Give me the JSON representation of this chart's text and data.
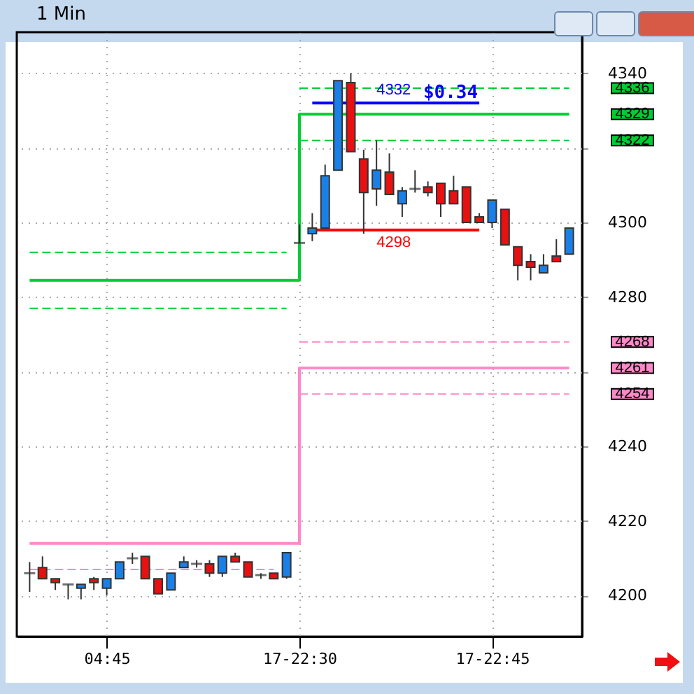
{
  "chart_data": {
    "type": "candlestick",
    "title": "1 Min",
    "categories": [
      null,
      null,
      null,
      null,
      null,
      null,
      "04:45",
      null,
      null,
      null,
      null,
      null,
      null,
      null,
      null,
      null,
      null,
      null,
      null,
      null,
      null,
      "17-22:30",
      null,
      null,
      null,
      null,
      null,
      null,
      null,
      null,
      null,
      null,
      null,
      null,
      null,
      null,
      "17-22:45",
      null,
      null,
      null,
      null,
      null,
      null
    ],
    "ohlc": [
      [
        4206,
        4209,
        4201,
        4206
      ],
      [
        4207.5,
        4210.5,
        4204.5,
        4204.5
      ],
      [
        4204.5,
        4204.5,
        4201.5,
        4203.5
      ],
      [
        4203,
        4203,
        4199,
        4203
      ],
      [
        4202,
        4203,
        4199,
        4203
      ],
      [
        4204.5,
        4205,
        4201.5,
        4203.5
      ],
      [
        4202,
        4204.5,
        4200,
        4204.5
      ],
      [
        4204.5,
        4209,
        4204.5,
        4209
      ],
      [
        4210,
        4211.5,
        4208.5,
        4210
      ],
      [
        4210.5,
        4210.5,
        4204.5,
        4204.5
      ],
      [
        4204.5,
        4204.5,
        4200.5,
        4200.5
      ],
      [
        4201.5,
        4206,
        4201.5,
        4206
      ],
      [
        4207.5,
        4210.5,
        4207.5,
        4209
      ],
      [
        4208.5,
        4209.5,
        4207.5,
        4208.5
      ],
      [
        4208.5,
        4209.5,
        4205,
        4206
      ],
      [
        4206,
        4210.5,
        4205,
        4210.5
      ],
      [
        4210.5,
        4211.5,
        4209,
        4209
      ],
      [
        4209,
        4209,
        4205,
        4205
      ],
      [
        4205.5,
        4206,
        4204.5,
        4205.5
      ],
      [
        4206,
        4206,
        4204.5,
        4204.5
      ],
      [
        4205,
        4211.5,
        4204.5,
        4211.5
      ],
      [
        4294.5,
        4299.5,
        4294.5,
        4294.5
      ],
      [
        4297,
        4302.5,
        4295,
        4298.5
      ],
      [
        4298.5,
        4315.5,
        4298.5,
        4312.5
      ],
      [
        4314,
        4338,
        4314,
        4338
      ],
      [
        4337.5,
        4340,
        4319,
        4319
      ],
      [
        4317,
        4319.5,
        4297,
        4308
      ],
      [
        4309,
        4322,
        4304.5,
        4314
      ],
      [
        4313.5,
        4318.5,
        4307.5,
        4307.5
      ],
      [
        4305,
        4309.5,
        4301.5,
        4308.5
      ],
      [
        4309,
        4314,
        4308,
        4309
      ],
      [
        4309.5,
        4311,
        4307,
        4308
      ],
      [
        4310.5,
        4310.5,
        4301.5,
        4305
      ],
      [
        4308.5,
        4312.5,
        4305,
        4305
      ],
      [
        4309.5,
        4309.5,
        4300,
        4300
      ],
      [
        4301.5,
        4302.5,
        4300,
        4300
      ],
      [
        4300,
        4306,
        4298.5,
        4306
      ],
      [
        4303.5,
        4303.5,
        4294,
        4294
      ],
      [
        4293.5,
        4293.5,
        4284.5,
        4288.5
      ],
      [
        4289.5,
        4291.5,
        4284.5,
        4288
      ],
      [
        4286.5,
        4291.5,
        4286.5,
        4288.5
      ],
      [
        4291,
        4295.5,
        4289.5,
        4289.5
      ],
      [
        4291.5,
        4298.5,
        4291.5,
        4298.5
      ]
    ],
    "colors": [
      "#333333",
      "#e81010",
      "#e81010",
      "#333333",
      "#1a80e8",
      "#e81010",
      "#1a80e8",
      "#1a80e8",
      "#333333",
      "#e81010",
      "#e81010",
      "#1a80e8",
      "#1a80e8",
      "#333333",
      "#e81010",
      "#1a80e8",
      "#e81010",
      "#e81010",
      "#333333",
      "#e81010",
      "#1a80e8",
      "#333333",
      "#1a80e8",
      "#1a80e8",
      "#1a80e8",
      "#e81010",
      "#e81010",
      "#1a80e8",
      "#e81010",
      "#1a80e8",
      "#333333",
      "#e81010",
      "#e81010",
      "#e81010",
      "#e81010",
      "#e81010",
      "#1a80e8",
      "#e81010",
      "#e81010",
      "#e81010",
      "#1a80e8",
      "#e81010",
      "#1a80e8"
    ],
    "series": [
      {
        "type": "line",
        "color": "#00cc33",
        "line_style": "dashed",
        "values": [
          4292,
          4292,
          4292,
          4292,
          4292,
          4292,
          4292,
          4292,
          4292,
          4292,
          4292,
          4292,
          4292,
          4292,
          4292,
          4292,
          4292,
          4292,
          4292,
          4292,
          4292,
          null,
          null,
          null,
          null,
          null,
          null,
          null,
          null,
          null,
          null,
          null,
          null,
          null,
          null,
          null,
          null,
          null,
          null,
          null,
          null,
          null,
          null
        ]
      },
      {
        "type": "line",
        "color": "#00cc33",
        "line_style": "dashed",
        "values": [
          4277,
          4277,
          4277,
          4277,
          4277,
          4277,
          4277,
          4277,
          4277,
          4277,
          4277,
          4277,
          4277,
          4277,
          4277,
          4277,
          4277,
          4277,
          4277,
          4277,
          4277,
          null,
          null,
          null,
          null,
          null,
          null,
          null,
          null,
          null,
          null,
          null,
          null,
          null,
          null,
          null,
          null,
          null,
          null,
          null,
          null,
          null,
          null
        ]
      },
      {
        "type": "line",
        "color": "#ff88c8",
        "line_style": "dashed",
        "values": [
          4207,
          4207,
          4207,
          4207,
          4207,
          4207,
          4207,
          4207,
          4207,
          4207,
          4207,
          4207,
          4207,
          4207,
          4207,
          4207,
          4207,
          4207,
          4207,
          4207,
          null,
          null,
          null,
          null,
          null,
          null,
          null,
          null,
          null,
          null,
          null,
          null,
          null,
          null,
          null,
          null,
          null,
          null,
          null,
          null,
          null,
          null,
          null
        ]
      },
      {
        "type": "line",
        "name": "4336",
        "color": "#00cc33",
        "line_style": "dashed",
        "values": [
          null,
          null,
          null,
          null,
          null,
          null,
          null,
          null,
          null,
          null,
          null,
          null,
          null,
          null,
          null,
          null,
          null,
          null,
          null,
          null,
          null,
          4336,
          4336,
          4336,
          4336,
          4336,
          4336,
          4336,
          4336,
          4336,
          4336,
          4336,
          4336,
          4336,
          4336,
          4336,
          4336,
          4336,
          4336,
          4336,
          4336,
          4336,
          4336
        ]
      },
      {
        "type": "step",
        "name": "4329",
        "color": "#00cc33",
        "line_style": "solid",
        "values": [
          4284.5,
          4284.5,
          4284.5,
          4284.5,
          4284.5,
          4284.5,
          4284.5,
          4284.5,
          4284.5,
          4284.5,
          4284.5,
          4284.5,
          4284.5,
          4284.5,
          4284.5,
          4284.5,
          4284.5,
          4284.5,
          4284.5,
          4284.5,
          4284.5,
          4329,
          4329,
          4329,
          4329,
          4329,
          4329,
          4329,
          4329,
          4329,
          4329,
          4329,
          4329,
          4329,
          4329,
          4329,
          4329,
          4329,
          4329,
          4329,
          4329,
          4329,
          4329
        ]
      },
      {
        "type": "line",
        "name": "4322",
        "color": "#00cc33",
        "line_style": "dashed",
        "values": [
          null,
          null,
          null,
          null,
          null,
          null,
          null,
          null,
          null,
          null,
          null,
          null,
          null,
          null,
          null,
          null,
          null,
          null,
          null,
          null,
          null,
          4322,
          4322,
          4322,
          4322,
          4322,
          4322,
          4322,
          4322,
          4322,
          4322,
          4322,
          4322,
          4322,
          4322,
          4322,
          4322,
          4322,
          4322,
          4322,
          4322,
          4322,
          4322
        ]
      },
      {
        "type": "line",
        "name": "4268",
        "color": "#ff88c8",
        "line_style": "dashed",
        "values": [
          null,
          null,
          null,
          null,
          null,
          null,
          null,
          null,
          null,
          null,
          null,
          null,
          null,
          null,
          null,
          null,
          null,
          null,
          null,
          null,
          null,
          4268,
          4268,
          4268,
          4268,
          4268,
          4268,
          4268,
          4268,
          4268,
          4268,
          4268,
          4268,
          4268,
          4268,
          4268,
          4268,
          4268,
          4268,
          4268,
          4268,
          4268,
          4268
        ]
      },
      {
        "type": "step",
        "name": "4261",
        "color": "#ff88c8",
        "line_style": "solid",
        "values": [
          4214,
          4214,
          4214,
          4214,
          4214,
          4214,
          4214,
          4214,
          4214,
          4214,
          4214,
          4214,
          4214,
          4214,
          4214,
          4214,
          4214,
          4214,
          4214,
          4214,
          4214,
          4261,
          4261,
          4261,
          4261,
          4261,
          4261,
          4261,
          4261,
          4261,
          4261,
          4261,
          4261,
          4261,
          4261,
          4261,
          4261,
          4261,
          4261,
          4261,
          4261,
          4261,
          4261
        ]
      },
      {
        "type": "line",
        "name": "4254",
        "color": "#ff88c8",
        "line_style": "dashed",
        "values": [
          null,
          null,
          null,
          null,
          null,
          null,
          null,
          null,
          null,
          null,
          null,
          null,
          null,
          null,
          null,
          null,
          null,
          null,
          null,
          null,
          null,
          4254,
          4254,
          4254,
          4254,
          4254,
          4254,
          4254,
          4254,
          4254,
          4254,
          4254,
          4254,
          4254,
          4254,
          4254,
          4254,
          4254,
          4254,
          4254,
          4254,
          4254,
          4254
        ]
      },
      {
        "type": "line",
        "name": "4332",
        "color": "#0000ff",
        "line_style": "solid",
        "values": [
          null,
          null,
          null,
          null,
          null,
          null,
          null,
          null,
          null,
          null,
          null,
          null,
          null,
          null,
          null,
          null,
          null,
          null,
          null,
          null,
          null,
          null,
          4332,
          4332,
          4332,
          4332,
          4332,
          4332,
          4332,
          4332,
          4332,
          4332,
          4332,
          4332,
          4332,
          4332,
          null,
          null,
          null,
          null,
          null,
          null,
          null
        ]
      },
      {
        "type": "line",
        "name": "4298",
        "color": "#ff0000",
        "line_style": "solid",
        "values": [
          null,
          null,
          null,
          null,
          null,
          null,
          null,
          null,
          null,
          null,
          null,
          null,
          null,
          null,
          null,
          null,
          null,
          null,
          null,
          null,
          null,
          null,
          4298,
          4298,
          4298,
          4298,
          4298,
          4298,
          4298,
          4298,
          4298,
          4298,
          4298,
          4298,
          4298,
          4298,
          null,
          null,
          null,
          null,
          null,
          null,
          null
        ]
      }
    ],
    "annotations": [
      "$0.34"
    ],
    "ylim": [
      4189,
      4351
    ],
    "yticks": [
      4200,
      4220,
      4240,
      {
        "value": 4260,
        "label": null
      },
      4280,
      4300,
      {
        "value": 4320,
        "label": null
      },
      4340
    ],
    "grid": true,
    "marker": "none",
    "legend": "right"
  }
}
